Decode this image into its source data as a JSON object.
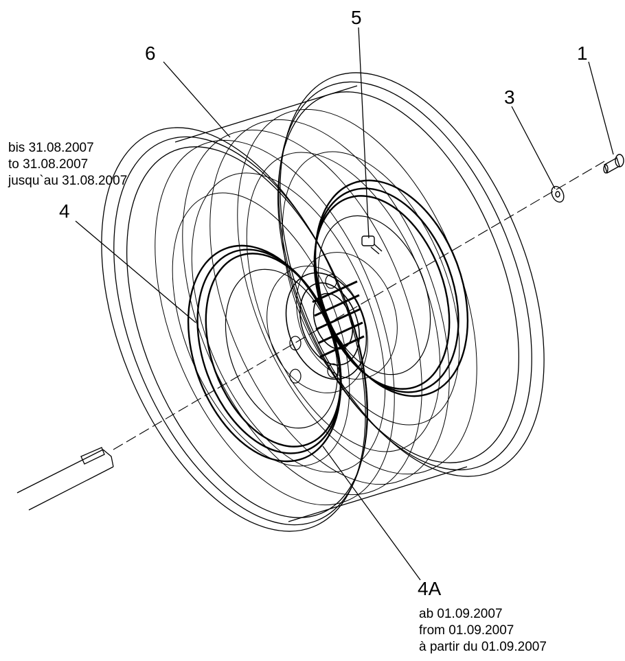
{
  "callouts": {
    "c1": "1",
    "c3": "3",
    "c4": "4",
    "c4a": "4A",
    "c5": "5",
    "c6": "6"
  },
  "notes": {
    "before": [
      "bis 31.08.2007",
      "to 31.08.2007",
      "jusqu`au 31.08.2007"
    ],
    "after": [
      "ab 01.09.2007",
      "from 01.09.2007",
      "à partir du 01.09.2007"
    ]
  }
}
